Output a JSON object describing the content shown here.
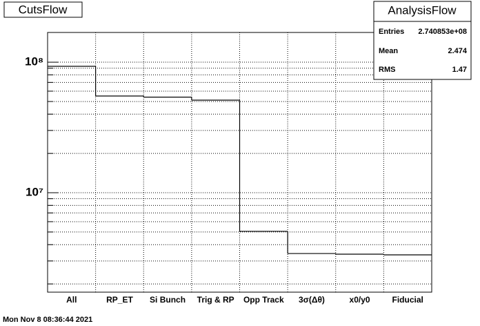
{
  "chart_data": {
    "type": "step",
    "title": "CutsFlow",
    "categories": [
      "All",
      "RP_ET",
      "Si Bunch",
      "Trig & RP",
      "Opp Track",
      "3σ(Δθ)",
      "x0/y0",
      "Fiducial"
    ],
    "values": [
      93000000,
      55100000,
      54000000,
      51200000,
      5060000,
      3420000,
      3380000,
      3340000
    ],
    "color": "#000000",
    "log_y": true,
    "grid": true,
    "ylim": [
      1730000,
      169000000
    ],
    "yticks": [
      {
        "value": 10000000,
        "label": "10⁷"
      },
      {
        "value": 100000000,
        "label": "10⁸"
      }
    ],
    "minor_yticks": [
      2000000,
      3000000,
      4000000,
      5000000,
      6000000,
      7000000,
      8000000,
      9000000,
      20000000,
      30000000,
      40000000,
      50000000,
      60000000,
      70000000,
      80000000,
      90000000
    ],
    "stats": {
      "title": "AnalysisFlow",
      "rows": [
        [
          "Entries",
          "2.740853e+08"
        ],
        [
          "Mean",
          "2.474"
        ],
        [
          "RMS",
          "1.47"
        ]
      ]
    },
    "footer": "Mon Nov  8 08:36:44 2021"
  }
}
